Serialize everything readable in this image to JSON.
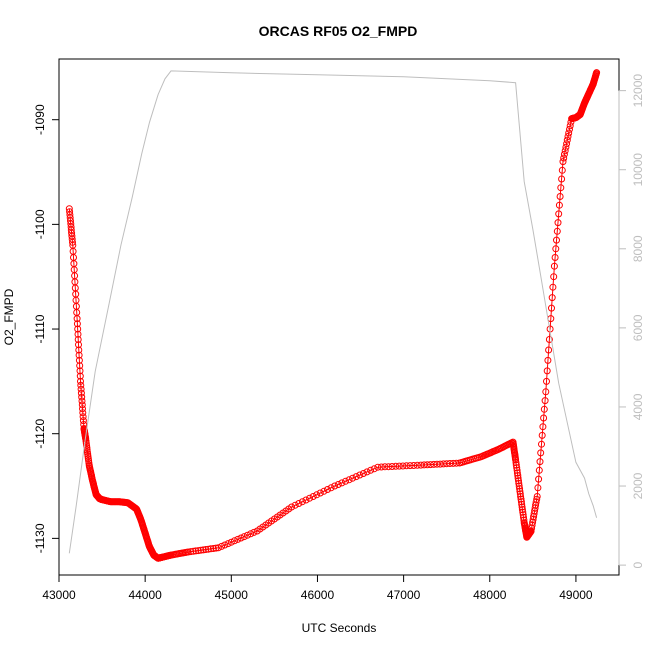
{
  "chart_data": {
    "type": "line",
    "title": "ORCAS RF05 O2_FMPD",
    "xlabel": "UTC Seconds",
    "ylabel": "O2_FMPD",
    "xlim": [
      43000,
      49500
    ],
    "ylim": [
      -1133.5,
      -1084.2
    ],
    "y2lim": [
      -250,
      12800
    ],
    "x_ticks": [
      43000,
      44000,
      45000,
      46000,
      47000,
      48000,
      49000
    ],
    "y_ticks": [
      -1130,
      -1120,
      -1110,
      -1100,
      -1090
    ],
    "y2_ticks": [
      0,
      2000,
      4000,
      6000,
      8000,
      10000,
      12000
    ],
    "grid": false,
    "series": [
      {
        "axis": "left",
        "style": "points-line",
        "color": "#ff0000",
        "x": [
          43120,
          43160,
          43210,
          43250,
          43290,
          43310,
          43350,
          43390,
          43430,
          43470,
          43500,
          43600,
          43700,
          43800,
          43900,
          43950,
          44000,
          44050,
          44100,
          44150,
          44200,
          44300,
          44500,
          44850,
          45300,
          45700,
          46200,
          46700,
          47200,
          47650,
          47900,
          48100,
          48270,
          48300,
          48350,
          48400,
          48430,
          48480,
          48550,
          48650,
          48750,
          48850,
          48950,
          49000,
          49050,
          49100,
          49150,
          49200,
          49240
        ],
        "y": [
          -1098.5,
          -1102,
          -1109,
          -1115,
          -1119.5,
          -1120.5,
          -1123,
          -1124.5,
          -1125.8,
          -1126.2,
          -1126.3,
          -1126.5,
          -1126.5,
          -1126.6,
          -1127.2,
          -1128.2,
          -1129.5,
          -1130.8,
          -1131.6,
          -1131.9,
          -1131.8,
          -1131.6,
          -1131.3,
          -1130.9,
          -1129.3,
          -1127,
          -1125,
          -1123.2,
          -1123,
          -1122.8,
          -1122.2,
          -1121.5,
          -1120.8,
          -1122.5,
          -1125.5,
          -1128.5,
          -1129.9,
          -1129.3,
          -1126,
          -1116,
          -1104,
          -1094,
          -1089.9,
          -1089.8,
          -1089.5,
          -1088.4,
          -1087.5,
          -1086.6,
          -1085.5
        ]
      },
      {
        "axis": "right",
        "style": "line",
        "color": "#bebebe",
        "x": [
          43120,
          43200,
          43300,
          43420,
          43580,
          43720,
          43850,
          43960,
          44050,
          44150,
          44230,
          44300,
          45000,
          46000,
          47000,
          48000,
          48300,
          48400,
          48500,
          48600,
          48700,
          48800,
          48900,
          49000,
          49100,
          49150,
          49200,
          49240
        ],
        "y": [
          300,
          1500,
          3100,
          4900,
          6600,
          8100,
          9300,
          10400,
          11200,
          11900,
          12300,
          12500,
          12450,
          12400,
          12350,
          12250,
          12200,
          9700,
          8500,
          7200,
          5900,
          4600,
          3600,
          2600,
          2200,
          1800,
          1500,
          1200
        ]
      }
    ]
  }
}
